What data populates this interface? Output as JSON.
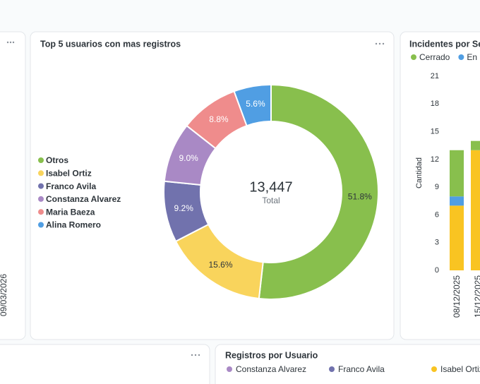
{
  "chart_data": [
    {
      "type": "pie",
      "title": "Top 5 usuarios con mas registros",
      "categories": [
        "Otros",
        "Isabel Ortiz",
        "Franco Avila",
        "Constanza  Alvarez",
        "Maria Baeza",
        "Alina Romero"
      ],
      "values": [
        51.8,
        15.6,
        9.2,
        9.0,
        8.8,
        5.6
      ],
      "value_labels": [
        "51.8%",
        "15.6%",
        "9.2%",
        "9.0%",
        "8.8%",
        "5.6%"
      ],
      "colors": [
        "#88bf4d",
        "#f9d45c",
        "#7172ad",
        "#a989c5",
        "#ef8c8c",
        "#509ee3"
      ],
      "center_value": "13,447",
      "center_label": "Total",
      "legend": "left"
    },
    {
      "type": "bar",
      "title": "Incidentes por Semana",
      "ylabel": "Cantidad",
      "categories": [
        "08/12/2025",
        "15/12/2025"
      ],
      "series": [
        {
          "name": "Cerrado",
          "color": "#88bf4d",
          "values": [
            5,
            1
          ]
        },
        {
          "name": "En Progreso",
          "color": "#509ee3",
          "values": [
            1,
            0
          ]
        },
        {
          "color": "#f9c422",
          "values": [
            7,
            13
          ]
        }
      ],
      "stacked": true,
      "ylim": [
        0,
        21
      ],
      "yticks": [
        0,
        3,
        6,
        9,
        12,
        15,
        18,
        21
      ],
      "legend": "top"
    }
  ],
  "left_panel": {
    "x_label": "09/03/2026"
  },
  "bottom_panel": {
    "title": "Registros por Usuario",
    "legend": [
      {
        "name": "Constanza  Alvarez",
        "color": "#a989c5"
      },
      {
        "name": "Franco Avila",
        "color": "#7172ad"
      },
      {
        "name": "Isabel Ortiz",
        "color": "#f9c422"
      }
    ]
  }
}
